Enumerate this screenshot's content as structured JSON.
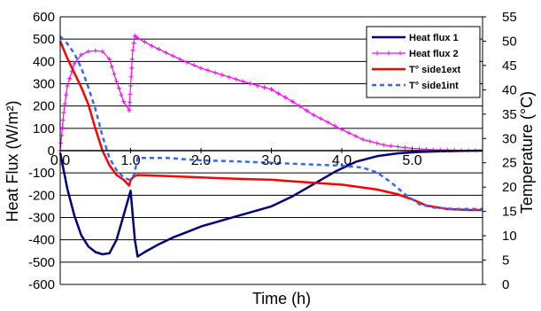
{
  "chart_data": {
    "type": "line",
    "xlabel": "Time (h)",
    "ylabel": "Heat Flux (W/m²)",
    "y2label": "Temperature (°C)",
    "xlim": [
      0,
      6
    ],
    "xticks": [
      "0.0",
      "1.0",
      "2.0",
      "3.0",
      "4.0",
      "5.0"
    ],
    "ylim": [
      -600,
      600
    ],
    "yticks": [
      -600,
      -500,
      -400,
      -300,
      -200,
      -100,
      0,
      100,
      200,
      300,
      400,
      500,
      600
    ],
    "y2lim": [
      0,
      55
    ],
    "y2ticks": [
      0,
      5,
      10,
      15,
      20,
      25,
      30,
      35,
      40,
      45,
      50,
      55
    ],
    "grid": "horizontal",
    "legend_position": "top-right",
    "series": [
      {
        "name": "Heat flux 1",
        "axis": "left",
        "color": "#000080",
        "style": "solid",
        "x": [
          0,
          0.1,
          0.2,
          0.3,
          0.4,
          0.5,
          0.6,
          0.7,
          0.8,
          0.9,
          1.0,
          1.03,
          1.06,
          1.1,
          1.2,
          1.4,
          1.6,
          1.8,
          2.0,
          2.5,
          3.0,
          3.3,
          3.6,
          3.9,
          4.2,
          4.5,
          4.8,
          5.1,
          5.4,
          5.7,
          6.0
        ],
        "y": [
          -10,
          -170,
          -290,
          -380,
          -430,
          -455,
          -465,
          -460,
          -400,
          -290,
          -180,
          -290,
          -400,
          -475,
          -455,
          -420,
          -390,
          -365,
          -340,
          -295,
          -250,
          -205,
          -150,
          -95,
          -50,
          -25,
          -12,
          -6,
          -3,
          -1,
          0
        ]
      },
      {
        "name": "Heat flux 2",
        "axis": "left",
        "color": "#FF00FF",
        "style": "solid-cross-markers",
        "x": [
          0,
          0.05,
          0.1,
          0.2,
          0.3,
          0.4,
          0.5,
          0.6,
          0.7,
          0.8,
          0.9,
          0.98,
          1.0,
          1.03,
          1.06,
          1.1,
          1.3,
          1.5,
          1.7,
          2.0,
          2.3,
          2.6,
          3.0,
          3.3,
          3.6,
          4.0,
          4.3,
          4.6,
          5.0,
          5.3,
          5.6,
          6.0
        ],
        "y": [
          0,
          170,
          290,
          390,
          430,
          445,
          448,
          445,
          410,
          310,
          220,
          180,
          290,
          450,
          515,
          505,
          470,
          440,
          410,
          370,
          340,
          310,
          275,
          220,
          160,
          95,
          50,
          25,
          10,
          4,
          2,
          0
        ]
      },
      {
        "name": "T° side1ext",
        "axis": "right",
        "color": "#FF0000",
        "style": "solid",
        "x": [
          0,
          0.1,
          0.2,
          0.3,
          0.4,
          0.5,
          0.6,
          0.7,
          0.8,
          0.9,
          0.98,
          1.0,
          1.05,
          1.1,
          1.5,
          2.0,
          2.5,
          3.0,
          3.5,
          4.0,
          4.5,
          4.8,
          5.0,
          5.2,
          5.5,
          5.8,
          6.0
        ],
        "y": [
          50,
          46.5,
          43.5,
          40.5,
          37,
          32,
          27.5,
          24.5,
          22.5,
          21.5,
          20.3,
          21.5,
          22.2,
          22.5,
          22.3,
          22.0,
          21.7,
          21.5,
          21.0,
          20.5,
          19.5,
          18.5,
          17.5,
          16.2,
          15.5,
          15.3,
          15.3
        ]
      },
      {
        "name": "T° side1int",
        "axis": "right",
        "color": "#3366FF",
        "style": "dashed",
        "x": [
          0,
          0.1,
          0.2,
          0.3,
          0.4,
          0.5,
          0.6,
          0.7,
          0.8,
          0.9,
          0.98,
          1.05,
          1.1,
          1.5,
          2.0,
          2.5,
          3.0,
          3.5,
          4.0,
          4.3,
          4.5,
          4.7,
          4.9,
          5.1,
          5.3,
          5.6,
          6.0
        ],
        "y": [
          51,
          49.5,
          47.5,
          44.5,
          40.5,
          36,
          30.5,
          26,
          23.5,
          22,
          21.5,
          22.5,
          26,
          26,
          25.5,
          25.3,
          25,
          24.7,
          24.4,
          24,
          23,
          21,
          18.5,
          16.5,
          15.8,
          15.5,
          15.5
        ]
      }
    ]
  }
}
